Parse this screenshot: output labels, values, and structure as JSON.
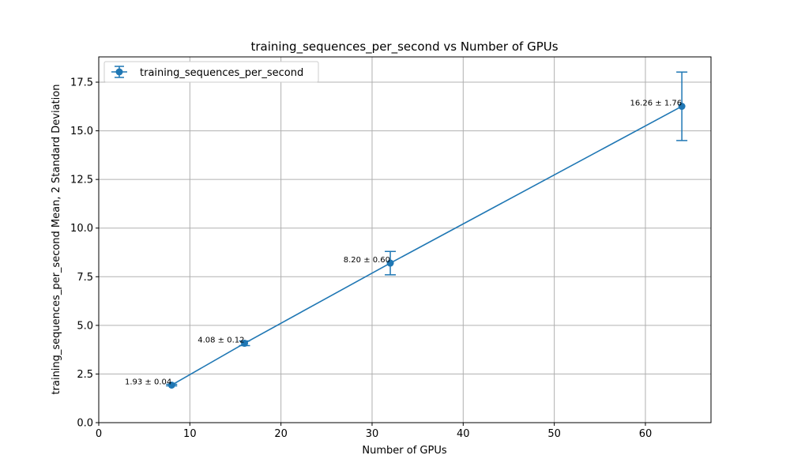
{
  "chart_data": {
    "type": "line",
    "title": "training_sequences_per_second vs Number of GPUs",
    "xlabel": "Number of GPUs",
    "ylabel": "training_sequences_per_second Mean, 2 Standard Deviation",
    "xlim": [
      0,
      67.2
    ],
    "ylim": [
      0,
      18.8
    ],
    "x_ticks": [
      0,
      10,
      20,
      30,
      40,
      50,
      60
    ],
    "y_ticks": [
      0.0,
      2.5,
      5.0,
      7.5,
      10.0,
      12.5,
      15.0,
      17.5
    ],
    "x_tick_labels": [
      "0",
      "10",
      "20",
      "30",
      "40",
      "50",
      "60"
    ],
    "y_tick_labels": [
      "0.0",
      "2.5",
      "5.0",
      "7.5",
      "10.0",
      "12.5",
      "15.0",
      "17.5"
    ],
    "grid": true,
    "legend_position": "upper-left",
    "series": [
      {
        "name": "training_sequences_per_second",
        "color": "#1f77b4",
        "x": [
          8,
          16,
          32,
          64
        ],
        "y": [
          1.93,
          4.08,
          8.2,
          16.26
        ],
        "error": [
          0.04,
          0.12,
          0.6,
          1.76
        ],
        "labels": [
          "1.93 ± 0.04",
          "4.08 ± 0.12",
          "8.20 ± 0.60",
          "16.26 ± 1.76"
        ]
      }
    ]
  }
}
